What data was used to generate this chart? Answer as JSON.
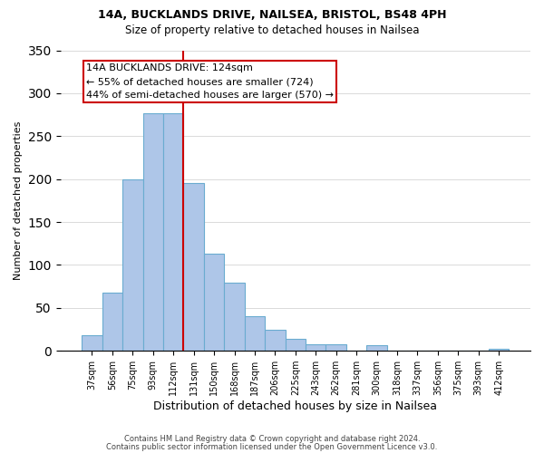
{
  "title1": "14A, BUCKLANDS DRIVE, NAILSEA, BRISTOL, BS48 4PH",
  "title2": "Size of property relative to detached houses in Nailsea",
  "xlabel": "Distribution of detached houses by size in Nailsea",
  "ylabel": "Number of detached properties",
  "bar_labels": [
    "37sqm",
    "56sqm",
    "75sqm",
    "93sqm",
    "112sqm",
    "131sqm",
    "150sqm",
    "168sqm",
    "187sqm",
    "206sqm",
    "225sqm",
    "243sqm",
    "262sqm",
    "281sqm",
    "300sqm",
    "318sqm",
    "337sqm",
    "356sqm",
    "375sqm",
    "393sqm",
    "412sqm"
  ],
  "bar_values": [
    18,
    68,
    200,
    277,
    277,
    195,
    113,
    79,
    40,
    24,
    14,
    8,
    8,
    0,
    7,
    0,
    0,
    0,
    0,
    0,
    2
  ],
  "bar_color": "#aec6e8",
  "bar_edge_color": "#6aacd0",
  "highlight_color": "#cc0000",
  "vline_x": 4.5,
  "annotation_lines": [
    "14A BUCKLANDS DRIVE: 124sqm",
    "← 55% of detached houses are smaller (724)",
    "44% of semi-detached houses are larger (570) →"
  ],
  "ylim": [
    0,
    350
  ],
  "yticks": [
    0,
    50,
    100,
    150,
    200,
    250,
    300,
    350
  ],
  "footer1": "Contains HM Land Registry data © Crown copyright and database right 2024.",
  "footer2": "Contains public sector information licensed under the Open Government Licence v3.0."
}
